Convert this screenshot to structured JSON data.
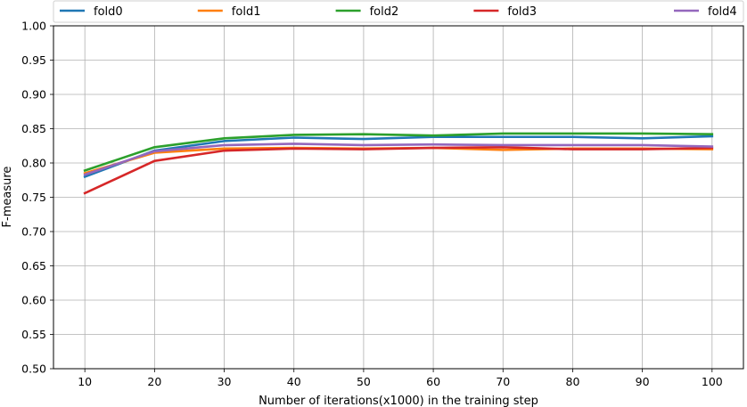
{
  "chart_data": {
    "type": "line",
    "title": "",
    "xlabel": "Number of iterations(x1000) in the training step",
    "ylabel": "F-measure",
    "x": [
      10,
      20,
      30,
      40,
      50,
      60,
      70,
      80,
      90,
      100
    ],
    "xticks": [
      "10",
      "20",
      "30",
      "40",
      "50",
      "60",
      "70",
      "80",
      "90",
      "100"
    ],
    "yticks": [
      "0.50",
      "0.55",
      "0.60",
      "0.65",
      "0.70",
      "0.75",
      "0.80",
      "0.85",
      "0.90",
      "0.95",
      "1.00"
    ],
    "xlim": [
      5.5,
      104.5
    ],
    "ylim": [
      0.5,
      1.0
    ],
    "grid": true,
    "legend_position": "top",
    "series": [
      {
        "name": "fold0",
        "color": "#1f77b4",
        "values": [
          0.78,
          0.818,
          0.832,
          0.837,
          0.835,
          0.838,
          0.838,
          0.838,
          0.836,
          0.839
        ]
      },
      {
        "name": "fold1",
        "color": "#ff7f0e",
        "values": [
          0.785,
          0.815,
          0.821,
          0.822,
          0.821,
          0.822,
          0.819,
          0.821,
          0.821,
          0.82
        ]
      },
      {
        "name": "fold2",
        "color": "#2ca02c",
        "values": [
          0.789,
          0.823,
          0.836,
          0.841,
          0.842,
          0.84,
          0.843,
          0.843,
          0.843,
          0.842
        ]
      },
      {
        "name": "fold3",
        "color": "#d62728",
        "values": [
          0.756,
          0.803,
          0.818,
          0.821,
          0.82,
          0.822,
          0.823,
          0.82,
          0.82,
          0.822
        ]
      },
      {
        "name": "fold4",
        "color": "#9467bd",
        "values": [
          0.783,
          0.817,
          0.826,
          0.828,
          0.826,
          0.827,
          0.826,
          0.826,
          0.826,
          0.824
        ]
      }
    ]
  }
}
